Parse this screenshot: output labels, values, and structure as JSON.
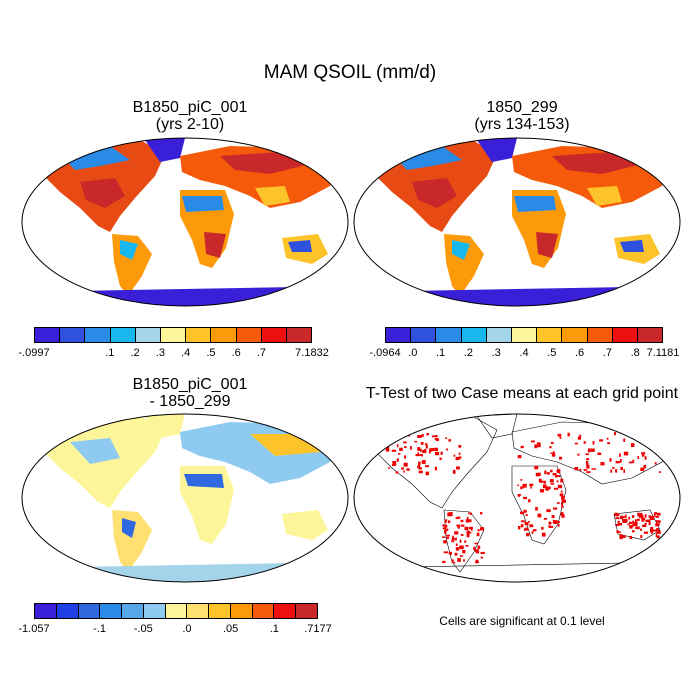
{
  "figure": {
    "main_title": "MAM QSOIL (mm/d)",
    "panels": [
      {
        "title_line1": "B1850_piC_001",
        "title_line2": "(yrs 2-10)"
      },
      {
        "title_line1": "1850_299",
        "title_line2": "(yrs 134-153)"
      },
      {
        "title_line1": "B1850_piC_001",
        "title_line2": "- 1850_299"
      },
      {
        "title_line1": "T-Test of two Case means at each grid point",
        "title_line2": ""
      }
    ],
    "significance_note": "Cells are significant at 0.1 level"
  },
  "colorbars": {
    "cb1": {
      "colors": [
        "#3a1fd8",
        "#3050de",
        "#2a8be6",
        "#16b8ee",
        "#a3d4ea",
        "#fdf59a",
        "#fdc32a",
        "#fd9a0a",
        "#f55a0a",
        "#ee1010",
        "#c8282a"
      ],
      "labels": [
        "-.0997",
        "",
        "",
        ".1",
        ".2",
        ".3",
        ".4",
        ".5",
        ".6",
        ".7",
        "",
        "7.1832"
      ]
    },
    "cb2": {
      "colors": [
        "#3a1fd8",
        "#3050de",
        "#2a8be6",
        "#16b8ee",
        "#a3d4ea",
        "#fdf59a",
        "#fdc32a",
        "#fd9a0a",
        "#f55a0a",
        "#ee1010",
        "#c8282a"
      ],
      "labels": [
        "-.0964",
        ".0",
        ".1",
        ".2",
        ".3",
        ".4",
        ".5",
        ".6",
        ".7",
        ".8",
        "7.1181"
      ]
    },
    "cb3": {
      "colors": [
        "#3a1fd8",
        "#2040e6",
        "#3068e0",
        "#2a8be6",
        "#56a6e8",
        "#8fcaf0",
        "#fdf59a",
        "#fde070",
        "#fdc32a",
        "#fd9a0a",
        "#f55a0a",
        "#ee1010",
        "#c8282a"
      ],
      "labels": [
        "-1.057",
        "",
        "",
        "-.1",
        "",
        "-.05",
        "",
        ".0",
        "",
        ".05",
        "",
        ".1",
        "",
        ".7177"
      ]
    },
    "colors_ttest": {
      "sig": "#ee0000"
    }
  }
}
